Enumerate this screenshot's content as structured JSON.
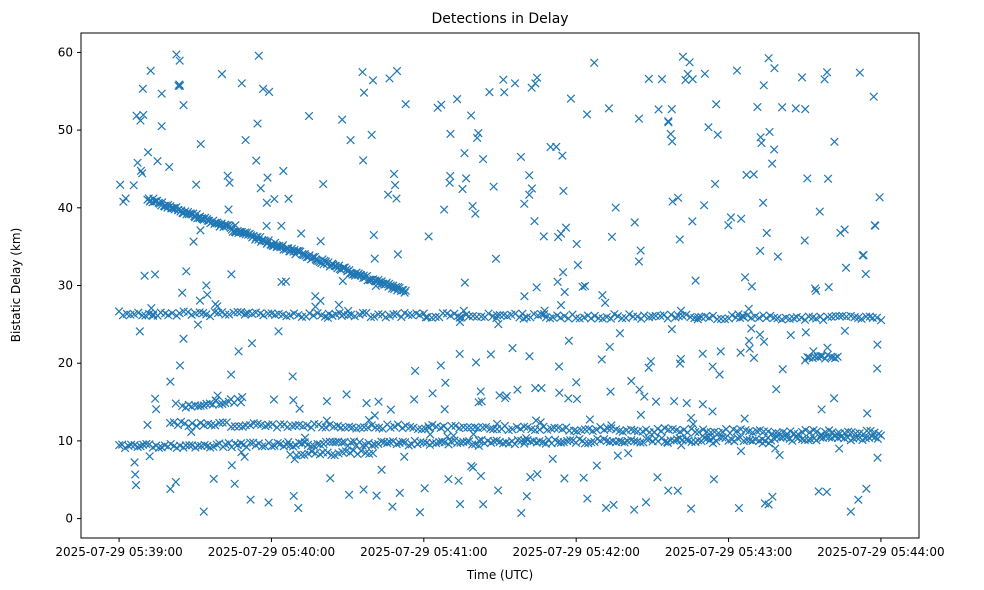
{
  "chart_data": {
    "type": "scatter",
    "title": "Detections in Delay",
    "xlabel": "Time (UTC)",
    "ylabel": "Bistatic Delay (km)",
    "xlim_seconds": [
      -15,
      315
    ],
    "ylim": [
      -2.5,
      62.5
    ],
    "x_ticks": [
      {
        "seconds": 0,
        "label": "2025-07-29 05:39:00"
      },
      {
        "seconds": 60,
        "label": "2025-07-29 05:40:00"
      },
      {
        "seconds": 120,
        "label": "2025-07-29 05:41:00"
      },
      {
        "seconds": 180,
        "label": "2025-07-29 05:42:00"
      },
      {
        "seconds": 240,
        "label": "2025-07-29 05:43:00"
      },
      {
        "seconds": 300,
        "label": "2025-07-29 05:44:00"
      }
    ],
    "y_ticks": [
      0,
      10,
      20,
      30,
      40,
      50,
      60
    ],
    "marker": "x",
    "color": "#1f77b4",
    "tracks": [
      {
        "name": "descending-track",
        "t_start": 11,
        "t_end": 113,
        "y_start": 41.2,
        "y_end": 29.2,
        "step": 0.5
      },
      {
        "name": "track-26km",
        "t_start": 0,
        "t_end": 300,
        "y_start": 26.4,
        "y_end": 25.8,
        "step": 1.5
      },
      {
        "name": "track-12km",
        "t_start": 20,
        "t_end": 300,
        "y_start": 12.2,
        "y_end": 11.0,
        "step": 1.5
      },
      {
        "name": "track-10km",
        "t_start": 0,
        "t_end": 300,
        "y_start": 9.3,
        "y_end": 10.4,
        "step": 1.2
      },
      {
        "name": "segment-14km",
        "t_start": 25,
        "t_end": 48,
        "y_start": 14.5,
        "y_end": 15.2,
        "step": 1.2
      },
      {
        "name": "segment-8km",
        "t_start": 70,
        "t_end": 100,
        "y_start": 8.3,
        "y_end": 8.6,
        "step": 1.5
      },
      {
        "name": "segment-20km",
        "t_start": 270,
        "t_end": 283,
        "y_start": 20.6,
        "y_end": 20.9,
        "step": 1.0
      }
    ],
    "noise": {
      "count": 430,
      "t_range": [
        0,
        300
      ],
      "y_range": [
        0.5,
        59.8
      ],
      "seed": 7
    }
  }
}
